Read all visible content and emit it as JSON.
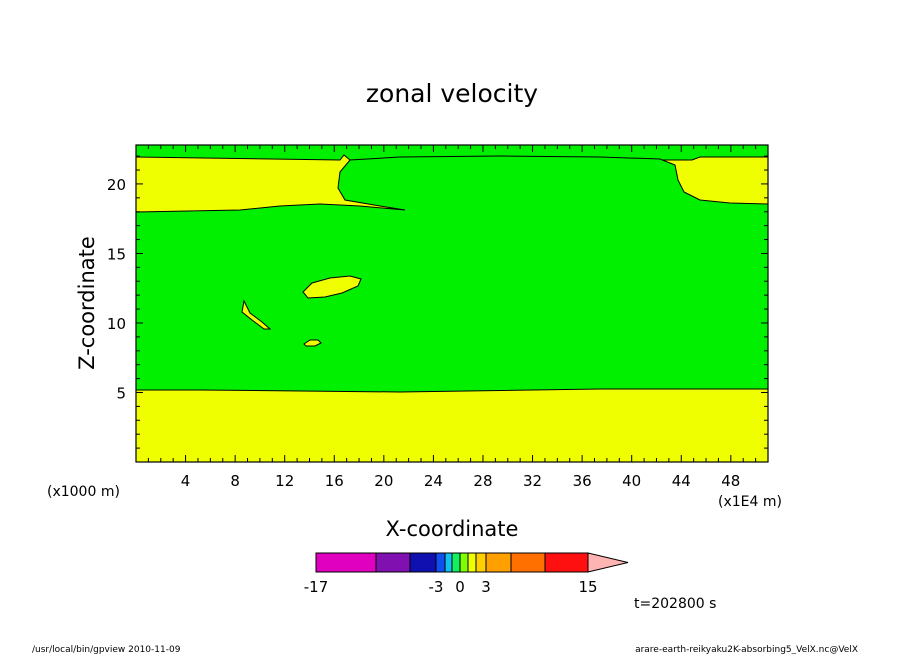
{
  "chart_data": {
    "type": "heatmap",
    "title": "zonal velocity",
    "xlabel": "X-coordinate",
    "ylabel": "Z-coordinate",
    "x_unit_note": "(x1E4 m)",
    "y_unit_note": "(x1000 m)",
    "xlim": [
      0,
      51
    ],
    "ylim": [
      0,
      22.8
    ],
    "x_ticks": [
      "4",
      "8",
      "12",
      "16",
      "20",
      "24",
      "28",
      "32",
      "36",
      "40",
      "44",
      "48"
    ],
    "y_ticks": [
      "5",
      "10",
      "15",
      "20"
    ],
    "fill_colors": {
      "band_near_zero": "#f0ff00",
      "band_slightly_negative": "#00f000"
    },
    "regions": [
      {
        "label": "yellow",
        "description_value_range": "0 to 1"
      },
      {
        "label": "green",
        "description_value_range": "-1 to 0"
      }
    ],
    "colorbar": {
      "tick_labels": [
        "-17",
        "-3",
        "0",
        "3",
        "15"
      ],
      "colors": [
        "#e000c0",
        "#8010b0",
        "#1010b0",
        "#1050f0",
        "#10c0f0",
        "#10f060",
        "#80ff00",
        "#f0ff00",
        "#ffd000",
        "#ffa000",
        "#ff7000",
        "#ff1010",
        "#ff7878",
        "#ffb4b4"
      ]
    },
    "time_label": "t=202800 s"
  },
  "footer": {
    "left": "/usr/local/bin/gpview  2010-11-09",
    "right": "arare-earth-reikyaku2K-absorbing5_VelX.nc@VelX"
  }
}
